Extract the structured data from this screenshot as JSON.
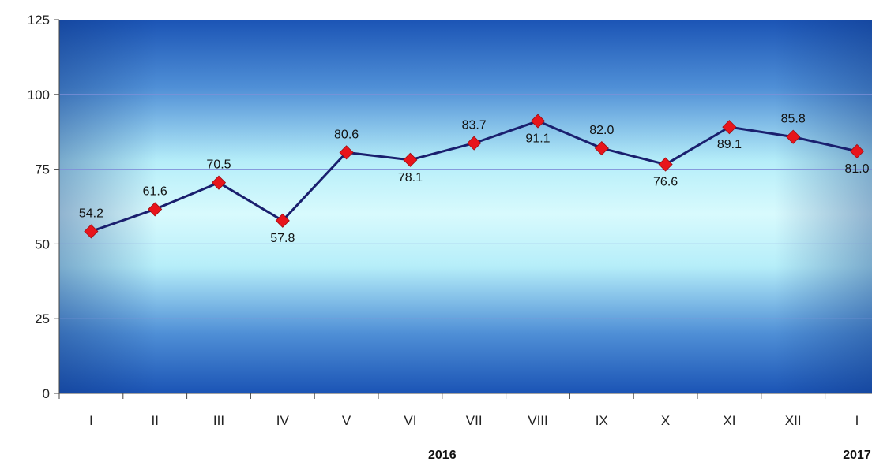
{
  "chart_data": {
    "type": "line",
    "categories": [
      "I",
      "II",
      "III",
      "IV",
      "V",
      "VI",
      "VII",
      "VIII",
      "IX",
      "X",
      "XI",
      "XII",
      "I"
    ],
    "series": [
      {
        "values": [
          54.2,
          61.6,
          70.5,
          57.8,
          80.6,
          78.1,
          83.7,
          91.1,
          82.0,
          76.6,
          89.1,
          85.8,
          81.0
        ]
      }
    ],
    "data_labels": [
      "54.2",
      "61.6",
      "70.5",
      "57.8",
      "80.6",
      "78.1",
      "83.7",
      "91.1",
      "82.0",
      "76.6",
      "89.1",
      "85.8",
      "81.0"
    ],
    "label_position": [
      "above",
      "above",
      "above",
      "below",
      "above",
      "below",
      "above",
      "below",
      "above",
      "below",
      "below",
      "above",
      "below"
    ],
    "y_ticks": [
      0,
      25,
      50,
      75,
      100,
      125
    ],
    "y_tick_labels": [
      "0",
      "25",
      "50",
      "75",
      "100",
      "125"
    ],
    "ylim": [
      0,
      125
    ],
    "year_groups": [
      {
        "label": "2016",
        "from": 0,
        "to": 11
      },
      {
        "label": "2017",
        "from": 12,
        "to": 12
      }
    ],
    "title": "",
    "xlabel": "",
    "ylabel": "",
    "grid": true,
    "colors": {
      "line": "#1a1f6e",
      "marker": "#e8141b",
      "gridline": "#7f8fd8",
      "bg_edge": "#1b54b5",
      "bg_mid": "#c6f3fb",
      "bg_center": "#d8fafd",
      "axis": "#444444"
    }
  }
}
